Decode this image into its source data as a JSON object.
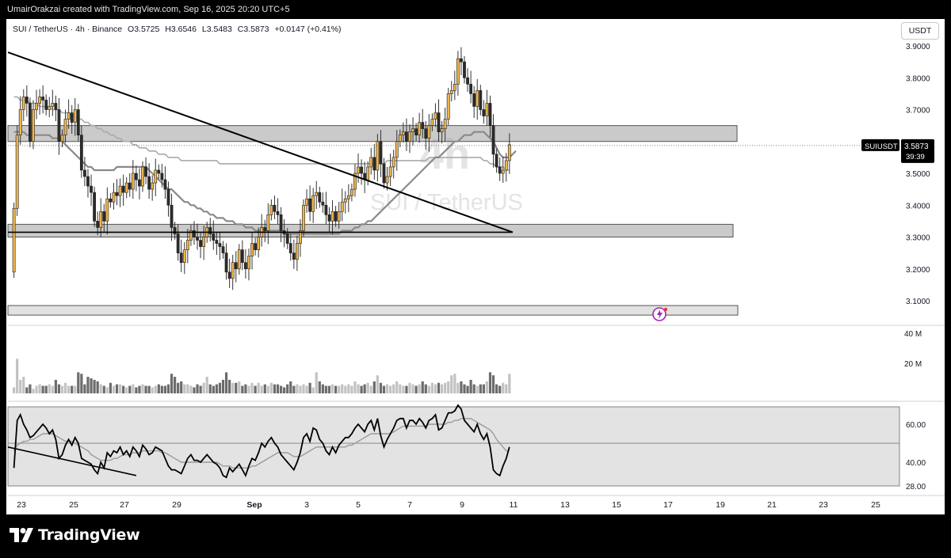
{
  "attribution": "UmairOrakzai created with TradingView.com, Sep 16, 2025 20:20 UTC+5",
  "legend": {
    "symbol": "SUI / TetherUS · 4h · Binance",
    "open": "O3.5725",
    "high": "H3.6546",
    "low": "L3.5483",
    "close": "C3.5873",
    "change": "+0.0147 (+0.41%)"
  },
  "currency_button": "USDT",
  "watermark": {
    "interval": "4h",
    "pair": "SUI / TetherUS"
  },
  "brand": "TradingView",
  "colors": {
    "up": "#f0b54a",
    "down": "#2b2b2b",
    "zone": "#9e9e9e",
    "ma": "#8a8a8a",
    "rsi": "#000000"
  },
  "chart_data": [
    {
      "type": "candlestick",
      "title": "SUI / TetherUS · 4h · Binance",
      "x_ticks": [
        "23",
        "25",
        "27",
        "29",
        "Sep",
        "3",
        "5",
        "7",
        "9",
        "11",
        "13",
        "15",
        "17",
        "19",
        "21",
        "23",
        "25"
      ],
      "y_ticks": [
        "3.9000",
        "3.8000",
        "3.7000",
        "3.6000",
        "3.5000",
        "3.4000",
        "3.3000",
        "3.2000",
        "3.1000"
      ],
      "ylim": [
        3.05,
        3.92
      ],
      "last_price": {
        "symbol": "SUIUSDT",
        "price": "3.5873",
        "countdown": "39:39"
      },
      "closes": [
        3.39,
        3.62,
        3.7,
        3.74,
        3.72,
        3.6,
        3.7,
        3.72,
        3.74,
        3.73,
        3.7,
        3.71,
        3.72,
        3.7,
        3.6,
        3.62,
        3.67,
        3.69,
        3.66,
        3.7,
        3.62,
        3.51,
        3.49,
        3.46,
        3.44,
        3.35,
        3.33,
        3.38,
        3.35,
        3.42,
        3.41,
        3.44,
        3.43,
        3.46,
        3.44,
        3.47,
        3.45,
        3.5,
        3.48,
        3.46,
        3.52,
        3.49,
        3.45,
        3.47,
        3.51,
        3.5,
        3.48,
        3.45,
        3.4,
        3.33,
        3.31,
        3.25,
        3.22,
        3.26,
        3.29,
        3.32,
        3.3,
        3.29,
        3.27,
        3.3,
        3.33,
        3.31,
        3.29,
        3.28,
        3.27,
        3.25,
        3.19,
        3.17,
        3.22,
        3.2,
        3.26,
        3.22,
        3.2,
        3.24,
        3.28,
        3.26,
        3.3,
        3.33,
        3.32,
        3.37,
        3.4,
        3.38,
        3.37,
        3.32,
        3.31,
        3.28,
        3.25,
        3.23,
        3.28,
        3.32,
        3.4,
        3.42,
        3.38,
        3.43,
        3.44,
        3.41,
        3.4,
        3.37,
        3.35,
        3.38,
        3.35,
        3.38,
        3.41,
        3.42,
        3.43,
        3.45,
        3.5,
        3.52,
        3.5,
        3.48,
        3.52,
        3.55,
        3.51,
        3.6,
        3.53,
        3.47,
        3.49,
        3.52,
        3.55,
        3.6,
        3.62,
        3.63,
        3.6,
        3.63,
        3.64,
        3.62,
        3.66,
        3.64,
        3.61,
        3.65,
        3.67,
        3.69,
        3.63,
        3.64,
        3.67,
        3.75,
        3.76,
        3.78,
        3.86,
        3.85,
        3.8,
        3.78,
        3.75,
        3.71,
        3.76,
        3.7,
        3.68,
        3.72,
        3.65,
        3.56,
        3.52,
        3.5,
        3.51,
        3.54,
        3.59
      ],
      "ma_slow": [
        3.74,
        3.74,
        3.73,
        3.73,
        3.73,
        3.72,
        3.72,
        3.72,
        3.71,
        3.71,
        3.71,
        3.71,
        3.7,
        3.7,
        3.7,
        3.69,
        3.69,
        3.69,
        3.68,
        3.68,
        3.67,
        3.67,
        3.66,
        3.66,
        3.65,
        3.65,
        3.64,
        3.64,
        3.63,
        3.63,
        3.62,
        3.62,
        3.61,
        3.61,
        3.6,
        3.6,
        3.6,
        3.59,
        3.59,
        3.58,
        3.58,
        3.58,
        3.57,
        3.57,
        3.57,
        3.56,
        3.56,
        3.56,
        3.55,
        3.55,
        3.55,
        3.55,
        3.54,
        3.54,
        3.54,
        3.54,
        3.54,
        3.54,
        3.54,
        3.54,
        3.54,
        3.54,
        3.54,
        3.54,
        3.53,
        3.53,
        3.53,
        3.53,
        3.53,
        3.53,
        3.53,
        3.53,
        3.53,
        3.53,
        3.53,
        3.53,
        3.53,
        3.53,
        3.53,
        3.53,
        3.53,
        3.53,
        3.53,
        3.53,
        3.53,
        3.53,
        3.53,
        3.53,
        3.53,
        3.53,
        3.53,
        3.53,
        3.53,
        3.53,
        3.53,
        3.53,
        3.53,
        3.53,
        3.53,
        3.53,
        3.53,
        3.53,
        3.53,
        3.53,
        3.53,
        3.53,
        3.53,
        3.53,
        3.53,
        3.53,
        3.53,
        3.53,
        3.53,
        3.53,
        3.53,
        3.53,
        3.54,
        3.54,
        3.54,
        3.54,
        3.54,
        3.54,
        3.54,
        3.54,
        3.54,
        3.54,
        3.54,
        3.54,
        3.54,
        3.55,
        3.55,
        3.55,
        3.55,
        3.55,
        3.55,
        3.55,
        3.55,
        3.55,
        3.55,
        3.55,
        3.55,
        3.55,
        3.55,
        3.55,
        3.55,
        3.55,
        3.54,
        3.54,
        3.53,
        3.53,
        3.52,
        3.52,
        3.52,
        3.51,
        3.51
      ],
      "ma_fast": [
        3.63,
        3.63,
        3.63,
        3.63,
        3.62,
        3.62,
        3.62,
        3.62,
        3.62,
        3.62,
        3.62,
        3.62,
        3.61,
        3.61,
        3.61,
        3.6,
        3.59,
        3.58,
        3.57,
        3.56,
        3.55,
        3.54,
        3.53,
        3.52,
        3.52,
        3.51,
        3.51,
        3.51,
        3.51,
        3.51,
        3.51,
        3.51,
        3.52,
        3.52,
        3.52,
        3.52,
        3.52,
        3.52,
        3.52,
        3.52,
        3.52,
        3.52,
        3.51,
        3.5,
        3.49,
        3.48,
        3.47,
        3.46,
        3.45,
        3.45,
        3.44,
        3.43,
        3.42,
        3.41,
        3.41,
        3.4,
        3.4,
        3.39,
        3.39,
        3.38,
        3.38,
        3.37,
        3.37,
        3.36,
        3.36,
        3.36,
        3.35,
        3.35,
        3.35,
        3.34,
        3.34,
        3.34,
        3.33,
        3.33,
        3.33,
        3.32,
        3.32,
        3.32,
        3.32,
        3.32,
        3.32,
        3.32,
        3.32,
        3.32,
        3.31,
        3.31,
        3.31,
        3.31,
        3.31,
        3.31,
        3.31,
        3.31,
        3.31,
        3.31,
        3.31,
        3.31,
        3.31,
        3.31,
        3.31,
        3.31,
        3.31,
        3.31,
        3.32,
        3.32,
        3.32,
        3.32,
        3.33,
        3.33,
        3.34,
        3.34,
        3.35,
        3.35,
        3.36,
        3.37,
        3.38,
        3.39,
        3.4,
        3.41,
        3.42,
        3.43,
        3.44,
        3.45,
        3.46,
        3.47,
        3.48,
        3.49,
        3.5,
        3.51,
        3.52,
        3.53,
        3.54,
        3.55,
        3.55,
        3.56,
        3.57,
        3.58,
        3.59,
        3.6,
        3.6,
        3.61,
        3.62,
        3.62,
        3.62,
        3.63,
        3.63,
        3.63,
        3.63,
        3.62,
        3.61,
        3.6,
        3.58,
        3.56,
        3.55,
        3.55,
        3.55,
        3.56,
        3.57
      ],
      "zones": [
        {
          "from": 3.6,
          "to": 3.65
        },
        {
          "from": 3.3,
          "to": 3.34
        },
        {
          "from": 3.055,
          "to": 3.085
        }
      ],
      "trendline": {
        "from_bar": 0,
        "from_value": 3.88,
        "to_bar": 155,
        "to_value": 3.315
      },
      "support_line": {
        "from_bar": 0,
        "to_bar": 155,
        "value": 3.315
      }
    },
    {
      "type": "bar",
      "title": "Volume",
      "y_ticks": [
        "40 M",
        "20 M"
      ],
      "ylim": [
        0,
        50
      ],
      "values": [
        4,
        23,
        9,
        11,
        4,
        6,
        3,
        5,
        6,
        5,
        5,
        6,
        5,
        9,
        6,
        5,
        7,
        5,
        5,
        5,
        14,
        13,
        6,
        11,
        10,
        9,
        8,
        6,
        5,
        4,
        7,
        5,
        6,
        6,
        5,
        4,
        5,
        6,
        4,
        5,
        6,
        5,
        5,
        4,
        5,
        6,
        5,
        5,
        6,
        13,
        11,
        7,
        8,
        6,
        6,
        5,
        4,
        6,
        5,
        7,
        11,
        6,
        5,
        6,
        7,
        9,
        14,
        9,
        7,
        7,
        8,
        5,
        6,
        5,
        7,
        5,
        7,
        5,
        6,
        5,
        7,
        6,
        6,
        5,
        4,
        6,
        8,
        5,
        6,
        5,
        6,
        5,
        7,
        4,
        14,
        8,
        6,
        5,
        5,
        6,
        5,
        5,
        6,
        5,
        6,
        5,
        8,
        6,
        5,
        6,
        7,
        5,
        8,
        12,
        7,
        5,
        6,
        5,
        6,
        8,
        6,
        5,
        5,
        7,
        6,
        5,
        6,
        8,
        6,
        5,
        7,
        6,
        7,
        6,
        7,
        8,
        12,
        13,
        7,
        8,
        6,
        5,
        9,
        6,
        5,
        6,
        6,
        8,
        14,
        12,
        6,
        5,
        7,
        6,
        13
      ]
    },
    {
      "type": "line",
      "title": "RSI",
      "y_ticks": [
        "60.00",
        "40.00",
        "28.00"
      ],
      "ylim": [
        25,
        70
      ],
      "band": [
        30,
        70
      ],
      "midline": 50,
      "rsi": [
        37,
        62,
        65,
        60,
        57,
        53,
        54,
        56,
        58,
        60,
        58,
        55,
        57,
        52,
        42,
        44,
        49,
        52,
        49,
        53,
        50,
        42,
        41,
        40,
        39,
        36,
        34,
        40,
        37,
        45,
        43,
        46,
        45,
        48,
        44,
        46,
        43,
        48,
        46,
        43,
        49,
        47,
        44,
        45,
        48,
        47,
        46,
        42,
        38,
        36,
        36,
        35,
        34,
        38,
        42,
        44,
        41,
        41,
        40,
        42,
        44,
        42,
        40,
        39,
        37,
        33,
        32,
        37,
        35,
        37,
        39,
        36,
        33,
        38,
        42,
        41,
        45,
        50,
        48,
        51,
        53,
        50,
        48,
        44,
        42,
        40,
        38,
        36,
        40,
        45,
        53,
        55,
        51,
        58,
        57,
        52,
        50,
        46,
        44,
        48,
        45,
        49,
        51,
        53,
        53,
        55,
        58,
        60,
        58,
        56,
        60,
        62,
        57,
        63,
        54,
        48,
        52,
        55,
        58,
        62,
        63,
        63,
        58,
        62,
        62,
        60,
        63,
        61,
        58,
        62,
        63,
        65,
        57,
        58,
        62,
        66,
        66,
        67,
        70,
        68,
        62,
        60,
        58,
        56,
        60,
        55,
        52,
        55,
        48,
        36,
        34,
        33,
        38,
        42,
        48
      ],
      "rsi_ma": [
        46,
        49,
        50,
        51,
        51,
        52,
        52,
        53,
        54,
        55,
        55,
        55,
        55,
        54,
        53,
        52,
        51,
        51,
        51,
        50,
        49,
        48,
        47,
        46,
        44,
        43,
        42,
        41,
        41,
        41,
        41,
        42,
        42,
        43,
        44,
        44,
        44,
        45,
        45,
        45,
        46,
        46,
        46,
        46,
        46,
        46,
        45,
        45,
        44,
        43,
        42,
        41,
        40,
        40,
        40,
        40,
        40,
        40,
        40,
        40,
        40,
        40,
        40,
        40,
        39,
        38,
        38,
        38,
        37,
        37,
        37,
        37,
        37,
        37,
        38,
        38,
        39,
        40,
        41,
        42,
        43,
        44,
        45,
        45,
        45,
        45,
        44,
        43,
        43,
        43,
        44,
        45,
        46,
        47,
        48,
        48,
        48,
        48,
        48,
        48,
        48,
        48,
        48,
        48,
        49,
        49,
        50,
        51,
        52,
        53,
        54,
        55,
        55,
        55,
        55,
        55,
        55,
        55,
        56,
        57,
        58,
        59,
        59,
        59,
        59,
        59,
        59,
        59,
        59,
        60,
        60,
        60,
        60,
        60,
        60,
        61,
        61,
        62,
        62,
        63,
        63,
        63,
        63,
        62,
        61,
        60,
        59,
        58,
        57,
        55,
        52,
        50,
        48,
        46,
        46
      ],
      "trendline": {
        "from_bar": 0,
        "from_value": 48,
        "to_bar": 38,
        "to_value": 33
      }
    }
  ]
}
